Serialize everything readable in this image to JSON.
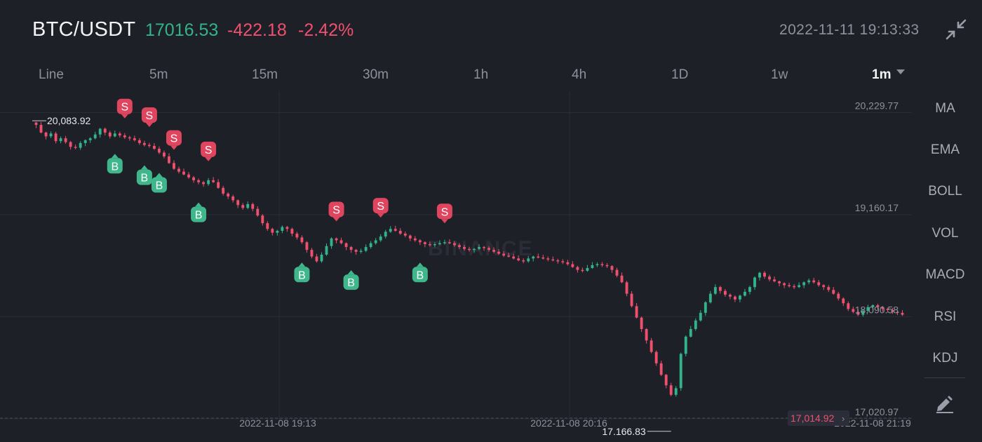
{
  "header": {
    "pair": "BTC/USDT",
    "last_price": "17016.53",
    "change": "-422.18",
    "change_pct": "-2.42%",
    "timestamp": "2022-11-11 19:13:33",
    "collapse_icon": "collapse-arrows-icon"
  },
  "intervals": [
    {
      "label": "Line"
    },
    {
      "label": "5m"
    },
    {
      "label": "15m"
    },
    {
      "label": "30m"
    },
    {
      "label": "1h"
    },
    {
      "label": "4h"
    },
    {
      "label": "1D"
    },
    {
      "label": "1w"
    },
    {
      "label": "1m"
    }
  ],
  "active_interval": "1m",
  "indicators": [
    "MA",
    "EMA",
    "BOLL",
    "VOL",
    "MACD",
    "RSI",
    "KDJ"
  ],
  "tools": {
    "draw_icon": "pencil-icon"
  },
  "colors": {
    "background": "#1e2028",
    "up": "#32b38a",
    "down": "#f0506e",
    "buy_marker": "#3fb68b",
    "sell_marker": "#e0455f"
  },
  "watermark": "BINANCE",
  "chart_data": {
    "type": "candlestick",
    "y_range": [
      16975,
      20300
    ],
    "price_labels": [
      {
        "value": 20229.77,
        "label": "20,229.77"
      },
      {
        "value": 19160.17,
        "label": "19,160.17"
      },
      {
        "value": 18090.58,
        "label": "18,090.58"
      },
      {
        "value": 17020.97,
        "label": "17,020.97"
      }
    ],
    "time_labels": [
      "2022-11-08 19:13",
      "2022-11-08 20:16",
      "2022-11-08 21:19"
    ],
    "max_label": "20,083.92",
    "min_label": "17,166.83",
    "current_price_label": "17,014.92",
    "current_price_value": 17014.92,
    "closes": [
      20020,
      19940,
      19900,
      19930,
      19850,
      19880,
      19840,
      19790,
      19780,
      19830,
      19860,
      19880,
      19920,
      19980,
      19940,
      19900,
      19930,
      19910,
      19890,
      19880,
      19860,
      19830,
      19810,
      19800,
      19770,
      19730,
      19690,
      19620,
      19560,
      19530,
      19500,
      19470,
      19440,
      19420,
      19400,
      19440,
      19420,
      19360,
      19300,
      19270,
      19230,
      19180,
      19150,
      19190,
      19140,
      19070,
      18990,
      18930,
      18890,
      18910,
      18950,
      18930,
      18880,
      18840,
      18790,
      18710,
      18640,
      18590,
      18660,
      18750,
      18830,
      18810,
      18780,
      18740,
      18710,
      18690,
      18700,
      18740,
      18780,
      18810,
      18850,
      18900,
      18930,
      18910,
      18880,
      18860,
      18830,
      18810,
      18790,
      18770,
      18760,
      18770,
      18780,
      18790,
      18780,
      18760,
      18740,
      18720,
      18710,
      18720,
      18740,
      18730,
      18710,
      18690,
      18670,
      18650,
      18640,
      18620,
      18600,
      18590,
      18620,
      18640,
      18630,
      18620,
      18610,
      18600,
      18590,
      18580,
      18560,
      18530,
      18500,
      18490,
      18520,
      18550,
      18560,
      18550,
      18540,
      18500,
      18440,
      18370,
      18250,
      18120,
      18000,
      17880,
      17760,
      17640,
      17520,
      17400,
      17290,
      17190,
      17260,
      17620,
      17800,
      17880,
      17970,
      18050,
      18160,
      18250,
      18320,
      18280,
      18240,
      18220,
      18190,
      18230,
      18270,
      18320,
      18420,
      18470,
      18430,
      18400,
      18380,
      18360,
      18340,
      18330,
      18320,
      18340,
      18370,
      18390,
      18370,
      18340,
      18320,
      18290,
      18250,
      18200,
      18150,
      18090,
      18060,
      18030,
      18070,
      18110,
      18130,
      18110,
      18090,
      18080,
      18060,
      18050,
      18030
    ],
    "markers": [
      {
        "type": "B",
        "index": 16
      },
      {
        "type": "S",
        "index": 18
      },
      {
        "type": "B",
        "index": 22
      },
      {
        "type": "S",
        "index": 23
      },
      {
        "type": "B",
        "index": 25
      },
      {
        "type": "S",
        "index": 28
      },
      {
        "type": "S",
        "index": 35
      },
      {
        "type": "B",
        "index": 33
      },
      {
        "type": "B",
        "index": 54
      },
      {
        "type": "S",
        "index": 61
      },
      {
        "type": "B",
        "index": 64
      },
      {
        "type": "S",
        "index": 70
      },
      {
        "type": "B",
        "index": 78
      },
      {
        "type": "S",
        "index": 83
      }
    ]
  }
}
